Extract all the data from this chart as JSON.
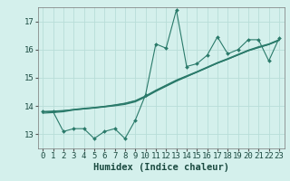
{
  "xlabel": "Humidex (Indice chaleur)",
  "bg_color": "#d4f0ec",
  "grid_color": "#b8ddd8",
  "line_color": "#2a7a6a",
  "x_values": [
    0,
    1,
    2,
    3,
    4,
    5,
    6,
    7,
    8,
    9,
    10,
    11,
    12,
    13,
    14,
    15,
    16,
    17,
    18,
    19,
    20,
    21,
    22,
    23
  ],
  "y_scatter": [
    13.8,
    13.8,
    13.1,
    13.2,
    13.2,
    12.85,
    13.1,
    13.2,
    12.85,
    13.5,
    14.4,
    16.2,
    16.05,
    17.4,
    15.4,
    15.5,
    15.8,
    16.45,
    15.85,
    16.0,
    16.35,
    16.35,
    15.6,
    16.4
  ],
  "y_line1": [
    13.8,
    13.82,
    13.84,
    13.87,
    13.9,
    13.93,
    13.97,
    14.01,
    14.06,
    14.15,
    14.32,
    14.52,
    14.7,
    14.88,
    15.04,
    15.2,
    15.36,
    15.52,
    15.66,
    15.81,
    15.96,
    16.08,
    16.18,
    16.33
  ],
  "y_line2": [
    13.8,
    13.8,
    13.83,
    13.88,
    13.92,
    13.95,
    13.99,
    14.04,
    14.1,
    14.19,
    14.36,
    14.56,
    14.74,
    14.92,
    15.07,
    15.22,
    15.38,
    15.54,
    15.68,
    15.83,
    15.98,
    16.1,
    16.2,
    16.35
  ],
  "y_line3": [
    13.75,
    13.77,
    13.8,
    13.86,
    13.9,
    13.94,
    13.98,
    14.03,
    14.09,
    14.18,
    14.34,
    14.54,
    14.72,
    14.9,
    15.05,
    15.2,
    15.36,
    15.52,
    15.66,
    15.81,
    15.96,
    16.07,
    16.18,
    16.33
  ],
  "ylim": [
    12.5,
    17.5
  ],
  "yticks": [
    13,
    14,
    15,
    16,
    17
  ],
  "xticks": [
    0,
    1,
    2,
    3,
    4,
    5,
    6,
    7,
    8,
    9,
    10,
    11,
    12,
    13,
    14,
    15,
    16,
    17,
    18,
    19,
    20,
    21,
    22,
    23
  ],
  "tick_fontsize": 6.5,
  "label_fontsize": 7.5
}
